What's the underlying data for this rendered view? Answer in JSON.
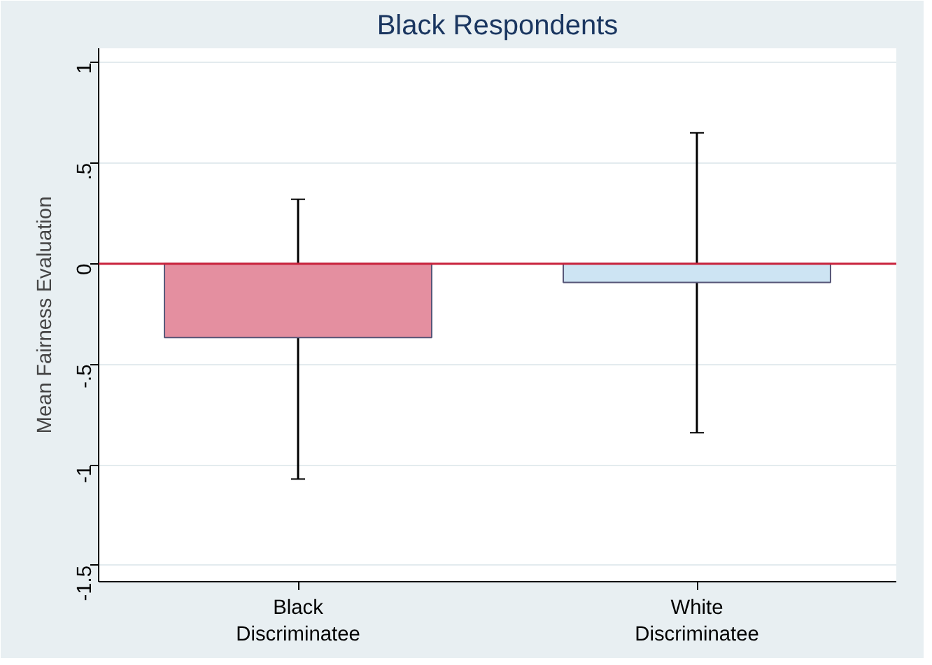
{
  "chart_data": {
    "type": "bar",
    "title": "Black Respondents",
    "ylabel": "Mean Fairness Evaluation",
    "categories": [
      "Black\nDiscriminatee",
      "White\nDiscriminatee"
    ],
    "values": [
      -0.367,
      -0.093
    ],
    "colors": [
      "#e48fa0",
      "#cde4f3"
    ],
    "errors": [
      [
        -1.07,
        0.32
      ],
      [
        -0.84,
        0.65
      ]
    ],
    "ylim": [
      -1.58,
      1.07
    ],
    "yticks": [
      {
        "value": 1,
        "label": "1"
      },
      {
        "value": 0.5,
        "label": ".5"
      },
      {
        "value": 0,
        "label": "0"
      },
      {
        "value": -0.5,
        "label": "-.5"
      },
      {
        "value": -1,
        "label": "-1"
      },
      {
        "value": -1.5,
        "label": "-1.5"
      }
    ],
    "ref_lines": [
      {
        "axis": "y",
        "value": 0,
        "color": "#c8203a"
      }
    ],
    "grid": "y"
  }
}
